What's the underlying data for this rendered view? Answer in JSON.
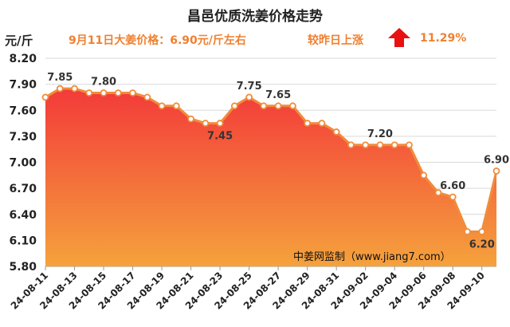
{
  "header": {
    "title": "昌邑优质洗姜价格走势",
    "unit": "元/斤",
    "price_note": "9月11日大姜价格：6.90元/斤左右",
    "change_label": "较昨日上涨",
    "change_value": "11.29%",
    "change_direction": "up-arrow-icon"
  },
  "watermark": "中姜网监制（www.jiang7.com）",
  "colors": {
    "line": "#f08c3c",
    "area_top": "#f33a3a",
    "area_bottom": "#f5a23c",
    "arrow": "#e81010",
    "accent_text": "#f08030"
  },
  "chart_data": {
    "type": "area",
    "x": [
      "24-08-11",
      "24-08-12",
      "24-08-13",
      "24-08-14",
      "24-08-15",
      "24-08-16",
      "24-08-17",
      "24-08-18",
      "24-08-19",
      "24-08-20",
      "24-08-21",
      "24-08-22",
      "24-08-23",
      "24-08-24",
      "24-08-25",
      "24-08-26",
      "24-08-27",
      "24-08-28",
      "24-08-29",
      "24-08-30",
      "24-08-31",
      "24-09-01",
      "24-09-02",
      "24-09-03",
      "24-09-04",
      "24-09-05",
      "24-09-06",
      "24-09-07",
      "24-09-08",
      "24-09-09",
      "24-09-10",
      "24-09-11"
    ],
    "x_tick_labels": [
      "24-08-11",
      "24-08-13",
      "24-08-15",
      "24-08-17",
      "24-08-19",
      "24-08-21",
      "24-08-23",
      "24-08-25",
      "24-08-27",
      "24-08-29",
      "24-08-31",
      "24-09-02",
      "24-09-04",
      "24-09-06",
      "24-09-08",
      "24-09-10"
    ],
    "values": [
      7.75,
      7.85,
      7.85,
      7.8,
      7.8,
      7.8,
      7.8,
      7.75,
      7.65,
      7.65,
      7.5,
      7.45,
      7.45,
      7.65,
      7.75,
      7.65,
      7.65,
      7.65,
      7.45,
      7.45,
      7.35,
      7.2,
      7.2,
      7.2,
      7.2,
      7.2,
      6.85,
      6.65,
      6.6,
      6.2,
      6.2,
      6.9
    ],
    "data_labels": [
      {
        "index": 1,
        "text": "7.85",
        "pos": "above"
      },
      {
        "index": 4,
        "text": "7.80",
        "pos": "above"
      },
      {
        "index": 12,
        "text": "7.45",
        "pos": "below"
      },
      {
        "index": 14,
        "text": "7.75",
        "pos": "above"
      },
      {
        "index": 16,
        "text": "7.65",
        "pos": "above"
      },
      {
        "index": 23,
        "text": "7.20",
        "pos": "above"
      },
      {
        "index": 28,
        "text": "6.60",
        "pos": "above"
      },
      {
        "index": 30,
        "text": "6.20",
        "pos": "below"
      },
      {
        "index": 31,
        "text": "6.90",
        "pos": "above"
      }
    ],
    "ylim": [
      5.8,
      8.2
    ],
    "yticks": [
      "5.80",
      "6.10",
      "6.40",
      "6.70",
      "7.00",
      "7.30",
      "7.60",
      "7.90",
      "8.20"
    ],
    "grid": true,
    "legend": "none"
  }
}
